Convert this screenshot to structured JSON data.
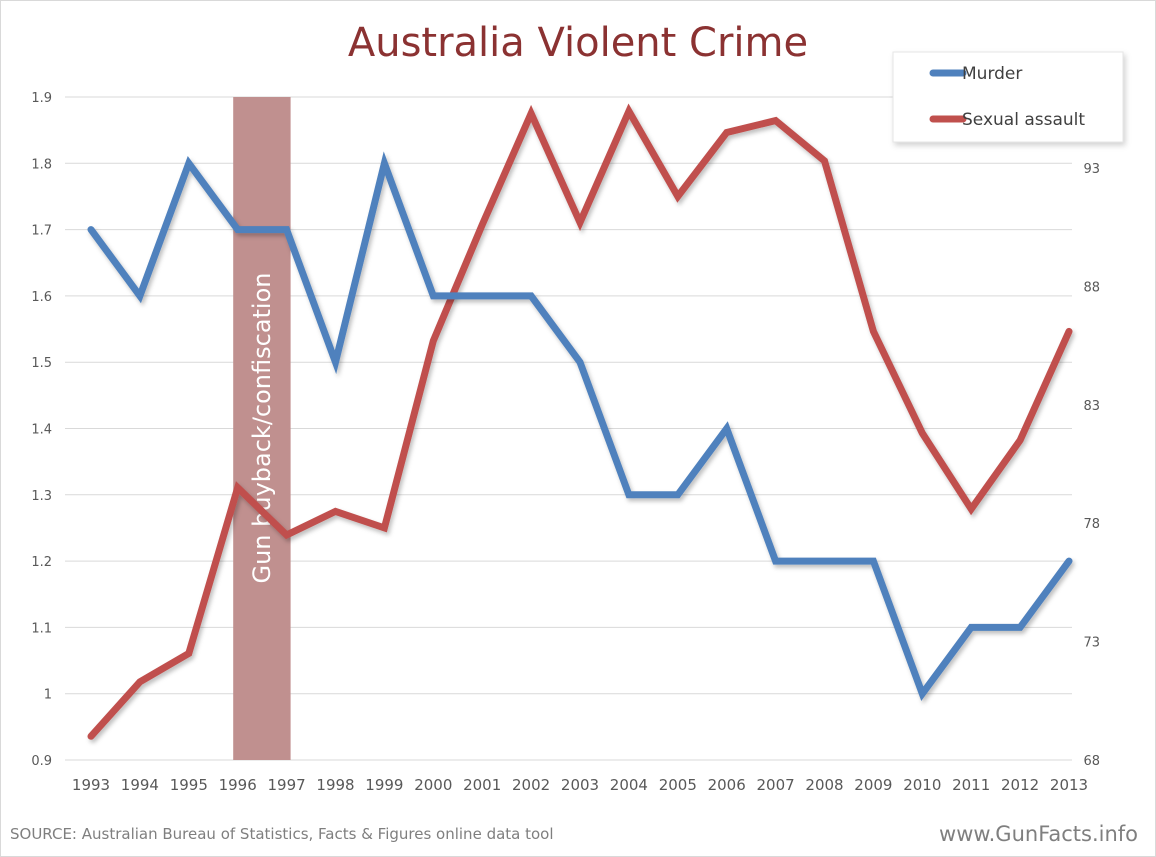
{
  "chart_data": {
    "type": "line",
    "title": "Australia Violent Crime",
    "categories": [
      "1993",
      "1994",
      "1995",
      "1996",
      "1997",
      "1998",
      "1999",
      "2000",
      "2001",
      "2002",
      "2003",
      "2004",
      "2005",
      "2006",
      "2007",
      "2008",
      "2009",
      "2010",
      "2011",
      "2012",
      "2013"
    ],
    "series": [
      {
        "name": "Murder",
        "axis": "left",
        "color": "#4f81bd",
        "values": [
          1.7,
          1.6,
          1.8,
          1.7,
          1.7,
          1.5,
          1.8,
          1.6,
          1.6,
          1.6,
          1.5,
          1.3,
          1.3,
          1.4,
          1.2,
          1.2,
          1.2,
          1.0,
          1.1,
          1.1,
          1.2
        ]
      },
      {
        "name": "Sexual assault",
        "axis": "right",
        "color": "#c0504d",
        "values": [
          69.0,
          71.3,
          72.5,
          79.5,
          77.5,
          78.5,
          77.8,
          85.7,
          90.6,
          95.3,
          90.7,
          95.4,
          91.8,
          94.5,
          95.0,
          93.3,
          86.1,
          81.8,
          78.6,
          81.5,
          86.1
        ]
      }
    ],
    "left_axis": {
      "ylim": [
        0.9,
        1.9
      ],
      "ticks": [
        "0.9",
        "1",
        "1.1",
        "1.2",
        "1.3",
        "1.4",
        "1.5",
        "1.6",
        "1.7",
        "1.8",
        "1.9"
      ]
    },
    "right_axis": {
      "ylim": [
        68,
        96
      ],
      "ticks": [
        "68",
        "73",
        "78",
        "83",
        "88",
        "93"
      ]
    },
    "annotation_band": {
      "label": "Gun buyback/confiscation",
      "from": "1996",
      "to": "1997",
      "color": "#c0908f"
    },
    "grid": true,
    "legend_position": "top-right",
    "xlabel": "",
    "ylabel": ""
  },
  "footer": {
    "source": "SOURCE: Australian Bureau of Statistics, Facts & Figures online data tool",
    "watermark": "www.GunFacts.info"
  }
}
